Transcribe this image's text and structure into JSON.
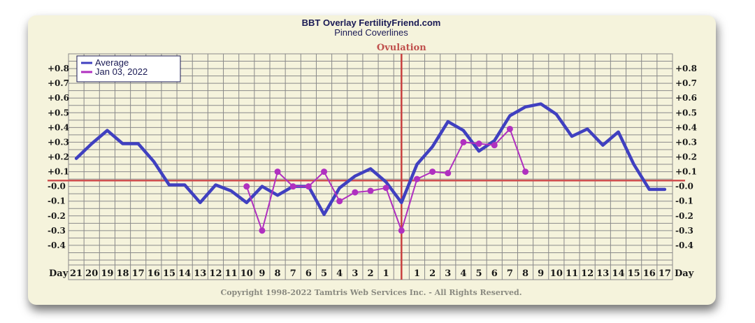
{
  "chart_data": {
    "type": "line",
    "title": "BBT Overlay FertilityFriend.com",
    "subtitle": "Pinned Coverlines",
    "ovulation_label": "Ovulation",
    "x_header_left": "Day",
    "x_header_right": "Day",
    "categories": [
      "21",
      "20",
      "19",
      "18",
      "17",
      "16",
      "15",
      "14",
      "13",
      "12",
      "11",
      "10",
      "9",
      "8",
      "7",
      "6",
      "5",
      "4",
      "3",
      "2",
      "1",
      "",
      "1",
      "2",
      "3",
      "4",
      "5",
      "6",
      "7",
      "8",
      "9",
      "10",
      "11",
      "12",
      "13",
      "14",
      "15",
      "16",
      "17"
    ],
    "ovulation_index": 21,
    "coverline": 0.04,
    "ylim": [
      -0.5,
      0.9
    ],
    "yticks": [
      0.8,
      0.7,
      0.6,
      0.5,
      0.4,
      0.3,
      0.2,
      0.1,
      0.0,
      -0.1,
      -0.2,
      -0.3,
      -0.4
    ],
    "ytick_labels": [
      "+0.8",
      "+0.7",
      "+0.6",
      "+0.5",
      "+0.4",
      "+0.3",
      "+0.2",
      "+0.1",
      "-0.0",
      "-0.1",
      "-0.2",
      "-0.3",
      "-0.4"
    ],
    "legend_position": "top-left",
    "series": [
      {
        "name": "Average",
        "color": "#4040c0",
        "values": [
          0.19,
          0.29,
          0.38,
          0.29,
          0.29,
          0.17,
          0.01,
          0.01,
          -0.11,
          0.01,
          -0.03,
          -0.11,
          0.0,
          -0.06,
          0.0,
          0.0,
          -0.19,
          -0.01,
          0.07,
          0.12,
          0.03,
          -0.11,
          0.15,
          0.27,
          0.44,
          0.38,
          0.24,
          0.31,
          0.48,
          0.54,
          0.56,
          0.49,
          0.34,
          0.39,
          0.28,
          0.37,
          0.15,
          -0.02,
          -0.02
        ]
      },
      {
        "name": "Jan 03, 2022",
        "color": "#b030c0",
        "values": [
          null,
          null,
          null,
          null,
          null,
          null,
          null,
          null,
          null,
          null,
          null,
          0.0,
          -0.3,
          0.1,
          0.0,
          0.0,
          0.1,
          -0.1,
          -0.04,
          -0.03,
          -0.01,
          -0.3,
          0.05,
          0.1,
          0.09,
          0.3,
          0.29,
          0.28,
          0.39,
          0.1,
          null,
          null,
          null,
          null,
          null,
          null,
          null,
          null,
          null
        ]
      }
    ],
    "copyright": "Copyright 1998-2022 Tamtris Web Services Inc. - All Rights Reserved."
  },
  "colors": {
    "background": "#f5f3dc",
    "grid": "#8a8a8a",
    "coverline": "#d05050",
    "ovulation_line": "#c84040"
  }
}
